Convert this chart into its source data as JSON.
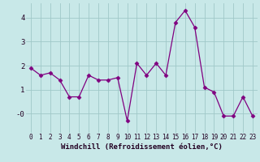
{
  "x": [
    0,
    1,
    2,
    3,
    4,
    5,
    6,
    7,
    8,
    9,
    10,
    11,
    12,
    13,
    14,
    15,
    16,
    17,
    18,
    19,
    20,
    21,
    22,
    23
  ],
  "y": [
    1.9,
    1.6,
    1.7,
    1.4,
    0.7,
    0.7,
    1.6,
    1.4,
    1.4,
    1.5,
    -0.3,
    2.1,
    1.6,
    2.1,
    1.6,
    3.8,
    4.3,
    3.6,
    1.1,
    0.9,
    -0.1,
    -0.1,
    0.7,
    -0.1
  ],
  "line_color": "#800080",
  "marker": "D",
  "marker_size": 2.5,
  "bg_color": "#c8e8e8",
  "grid_color": "#a0c8c8",
  "xlabel": "Windchill (Refroidissement éolien,°C)",
  "ylim": [
    -0.8,
    4.6
  ],
  "xlim": [
    -0.5,
    23.5
  ],
  "yticks": [
    0,
    1,
    2,
    3,
    4
  ],
  "ytick_labels": [
    "-0",
    "1",
    "2",
    "3",
    "4"
  ],
  "xticks": [
    0,
    1,
    2,
    3,
    4,
    5,
    6,
    7,
    8,
    9,
    10,
    11,
    12,
    13,
    14,
    15,
    16,
    17,
    18,
    19,
    20,
    21,
    22,
    23
  ],
  "tick_fontsize": 5.5,
  "xlabel_fontsize": 6.5,
  "label_color": "#220022"
}
